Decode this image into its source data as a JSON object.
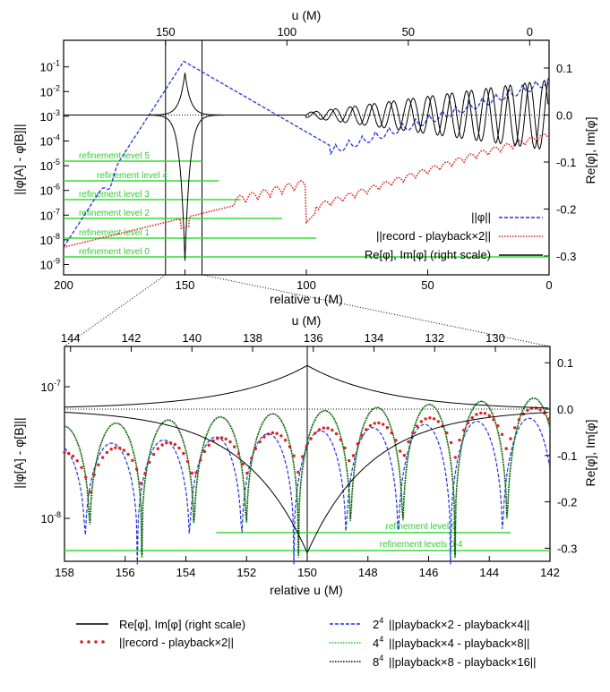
{
  "chart_data": [
    {
      "type": "line",
      "panel": "top",
      "x_label_bottom": "relative u (M)",
      "x_label_top": "u (M)",
      "y_label_left": "||φ[A] - φ[B]||",
      "y_label_right": "Re[φ], Im[φ]",
      "x_bottom_ticks": [
        "200",
        "150",
        "100",
        "50",
        "0"
      ],
      "x_top_ticks": [
        "150",
        "100",
        "50",
        "0"
      ],
      "y_left_ticks": [
        "10^-9",
        "10^-8",
        "10^-7",
        "10^-6",
        "10^-5",
        "10^-4",
        "10^-3",
        "10^-2",
        "10^-1"
      ],
      "y_right_ticks": [
        "0.1",
        "0.0",
        "-0.1",
        "-0.2",
        "-0.3"
      ],
      "xlim": [
        200,
        0
      ],
      "y_left_log_range": [
        -9,
        -0.5
      ],
      "y_right_range": [
        -0.33,
        0.12
      ],
      "refinement_levels": [
        {
          "label": "refinement level 5",
          "x_end": 143
        },
        {
          "label": "refinement level 4",
          "x_end": 136
        },
        {
          "label": "refinement level 3",
          "x_end": 127
        },
        {
          "label": "refinement level 2",
          "x_end": 110
        },
        {
          "label": "refinement level 1",
          "x_end": 96
        },
        {
          "label": "refinement level 0",
          "x_end": 0
        }
      ],
      "vertical_markers": [
        158,
        143
      ],
      "legend": [
        {
          "label": "||φ||",
          "color": "#2233dd",
          "style": "dashed"
        },
        {
          "label": "||record - playback×2||",
          "color": "#dd2222",
          "style": "dotted"
        },
        {
          "label": "Re[φ], Im[φ] (right scale)",
          "color": "#000000",
          "style": "solid"
        }
      ]
    },
    {
      "type": "line",
      "panel": "bottom",
      "x_label_bottom": "relative u (M)",
      "x_label_top": "u (M)",
      "y_label_left": "||φ[A] - φ[B]||",
      "y_label_right": "Re[φ], Im[φ]",
      "x_bottom_ticks": [
        "158",
        "156",
        "154",
        "152",
        "150",
        "148",
        "146",
        "144",
        "142"
      ],
      "x_top_ticks": [
        "144",
        "142",
        "140",
        "138",
        "136",
        "134",
        "132",
        "130"
      ],
      "y_left_ticks": [
        "10^-8",
        "10^-7"
      ],
      "y_right_ticks": [
        "0.1",
        "0.0",
        "-0.1",
        "-0.2",
        "-0.3"
      ],
      "xlim": [
        158,
        142
      ],
      "y_right_range": [
        -0.33,
        0.12
      ],
      "refinement_levels": [
        {
          "label": "refinement level 5",
          "x_start": 153,
          "x_end": 143.3
        },
        {
          "label": "refinement levels 0-4",
          "x_start": 158,
          "x_end": 142
        }
      ],
      "vertical_markers": [
        150
      ],
      "legend": [
        {
          "label": "Re[φ], Im[φ] (right scale)",
          "color": "#000000",
          "style": "solid"
        },
        {
          "label": "||record - playback×2||",
          "color": "#dd2222",
          "style": "dots"
        },
        {
          "label": "||playback×2 - playback×4||",
          "prefix": "2",
          "prefix_sup": "4",
          "color": "#2233dd",
          "style": "dashed"
        },
        {
          "label": "||playback×4 - playback×8||",
          "prefix": "4",
          "prefix_sup": "4",
          "color": "#22bb22",
          "style": "dotted"
        },
        {
          "label": "||playback×8 - playback×16||",
          "prefix": "8",
          "prefix_sup": "4",
          "color": "#000000",
          "style": "dotted"
        }
      ]
    }
  ]
}
